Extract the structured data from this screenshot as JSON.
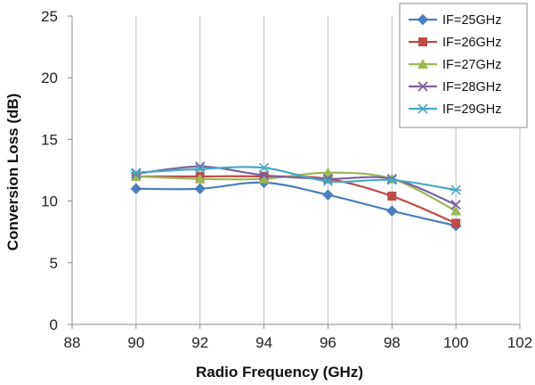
{
  "chart_data": {
    "type": "line",
    "title": "",
    "xlabel": "Radio Frequency (GHz)",
    "ylabel": "Conversion Loss (dB)",
    "xlim": [
      88,
      102
    ],
    "ylim": [
      0,
      25
    ],
    "xticks": [
      88,
      90,
      92,
      94,
      96,
      98,
      100,
      102
    ],
    "yticks": [
      0,
      5,
      10,
      15,
      20,
      25
    ],
    "grid": "vertical",
    "legend_position": "top-right",
    "x": [
      90,
      92,
      94,
      96,
      98,
      100
    ],
    "series": [
      {
        "name": "IF=25GHz",
        "color": "#4a7ebb",
        "marker": "diamond",
        "values": [
          11.0,
          11.0,
          11.5,
          10.5,
          9.2,
          8.0
        ]
      },
      {
        "name": "IF=26GHz",
        "color": "#be4b48",
        "marker": "square",
        "values": [
          12.0,
          12.0,
          12.0,
          11.8,
          10.4,
          8.2
        ]
      },
      {
        "name": "IF=27GHz",
        "color": "#98b954",
        "marker": "triangle",
        "values": [
          12.0,
          11.8,
          11.8,
          12.3,
          11.8,
          9.2
        ]
      },
      {
        "name": "IF=28GHz",
        "color": "#7d60a0",
        "marker": "x",
        "values": [
          12.2,
          12.8,
          12.1,
          11.8,
          11.8,
          9.7
        ]
      },
      {
        "name": "IF=29GHz",
        "color": "#46aac5",
        "marker": "star",
        "values": [
          12.3,
          12.6,
          12.7,
          11.6,
          11.7,
          10.9
        ]
      }
    ]
  }
}
